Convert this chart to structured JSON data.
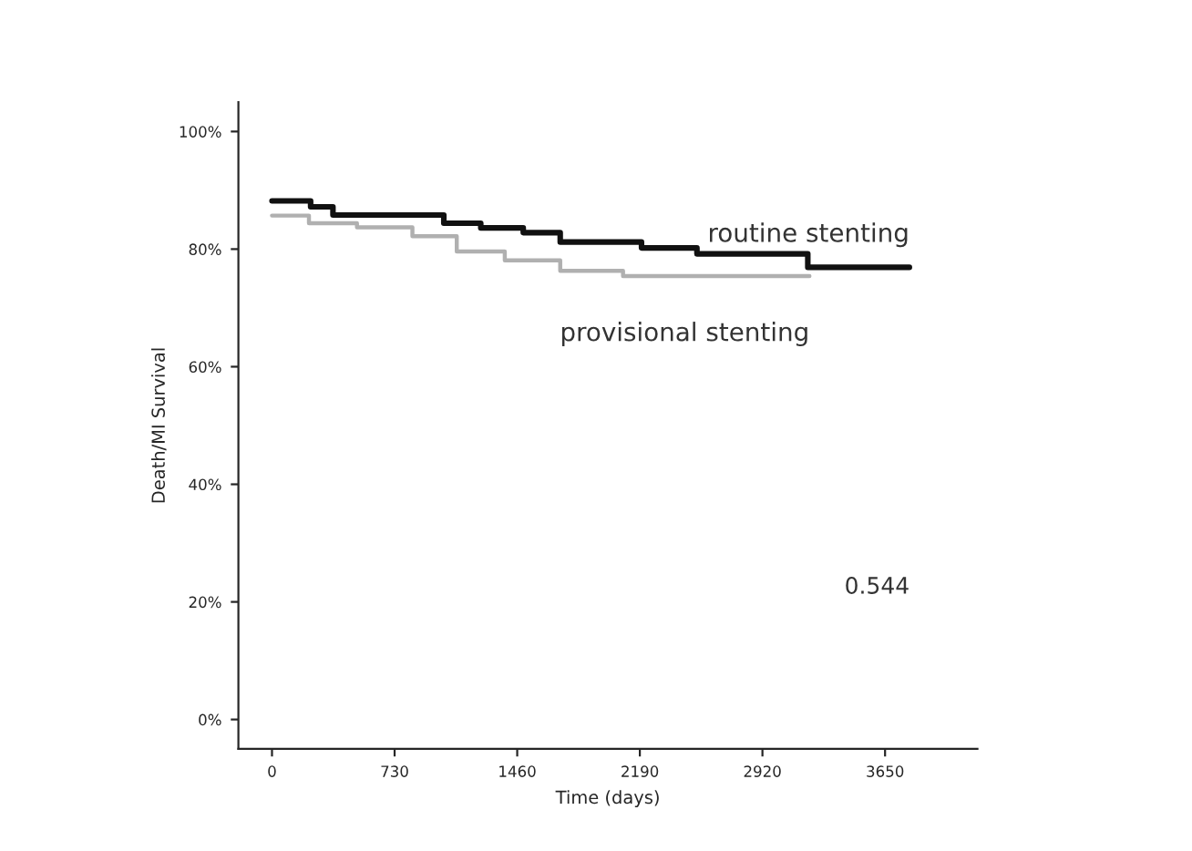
{
  "chart_data": {
    "type": "step",
    "xlabel": "Time (days)",
    "ylabel": "Death/MI Survival",
    "xlim": [
      -200,
      4200
    ],
    "xticks": [
      0,
      730,
      1460,
      2190,
      2920,
      3650
    ],
    "ylim": [
      -5,
      105
    ],
    "yticks": [
      {
        "value": 0,
        "label": "0%"
      },
      {
        "value": 20,
        "label": "20%"
      },
      {
        "value": 40,
        "label": "40%"
      },
      {
        "value": 60,
        "label": "60%"
      },
      {
        "value": 80,
        "label": "80%"
      },
      {
        "value": 100,
        "label": "100%"
      }
    ],
    "grid": false,
    "legend": false,
    "series": [
      {
        "name": "routine stenting",
        "color": "#111111",
        "x": [
          0,
          230,
          363,
          1023,
          1243,
          1496,
          1716,
          2200,
          2530,
          3190,
          3795
        ],
        "values": [
          88.2,
          87.2,
          85.8,
          84.4,
          83.6,
          82.8,
          81.2,
          80.2,
          79.2,
          76.9,
          76.9
        ]
      },
      {
        "name": "provisional stenting",
        "color": "#b0b0b0",
        "x": [
          0,
          220,
          506,
          836,
          1100,
          1386,
          1716,
          2090,
          3200
        ],
        "values": [
          85.7,
          84.4,
          83.7,
          82.2,
          79.6,
          78.1,
          76.3,
          75.4,
          75.4
        ]
      }
    ],
    "annotations": [
      "0.544"
    ]
  }
}
